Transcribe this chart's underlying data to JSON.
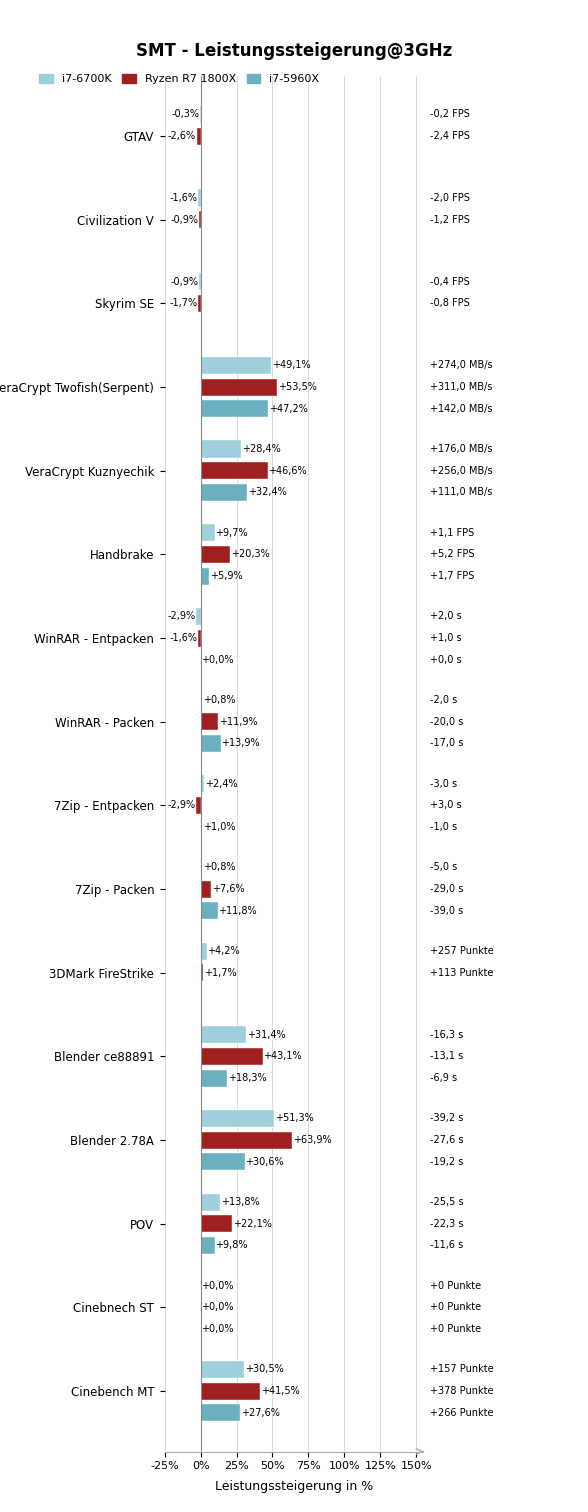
{
  "title": "SMT - Leistungssteigerung@3GHz",
  "xlabel": "Leistungssteigerung in %",
  "legend_labels": [
    "i7-6700K",
    "Ryzen R7 1800X",
    "i7-5960X"
  ],
  "colors": {
    "i7_6700K": "#9ECFDA",
    "ryzen": "#A02020",
    "i7_5960X": "#6BB0C0"
  },
  "bar_height": 0.22,
  "groups": [
    {
      "label": "GTAV",
      "values": [
        -0.3,
        -2.6,
        null
      ],
      "pct_labels": [
        "-0,3%",
        "-2,6%",
        null
      ],
      "abs_labels": [
        "-0,2 FPS",
        "-2,4 FPS",
        null
      ]
    },
    {
      "label": "Civilization V",
      "values": [
        -1.6,
        -0.9,
        null
      ],
      "pct_labels": [
        "-1,6%",
        "-0,9%",
        null
      ],
      "abs_labels": [
        "-2,0 FPS",
        "-1,2 FPS",
        null
      ]
    },
    {
      "label": "Skyrim SE",
      "values": [
        -0.9,
        -1.7,
        null
      ],
      "pct_labels": [
        "-0,9%",
        "-1,7%",
        null
      ],
      "abs_labels": [
        "-0,4 FPS",
        "-0,8 FPS",
        null
      ]
    },
    {
      "label": "VeraCrypt Twofish(Serpent)",
      "values": [
        49.1,
        53.5,
        47.2
      ],
      "pct_labels": [
        "+49,1%",
        "+53,5%",
        "+47,2%"
      ],
      "abs_labels": [
        "+274,0 MB/s",
        "+311,0 MB/s",
        "+142,0 MB/s"
      ]
    },
    {
      "label": "VeraCrypt Kuznyechik",
      "values": [
        28.4,
        46.6,
        32.4
      ],
      "pct_labels": [
        "+28,4%",
        "+46,6%",
        "+32,4%"
      ],
      "abs_labels": [
        "+176,0 MB/s",
        "+256,0 MB/s",
        "+111,0 MB/s"
      ]
    },
    {
      "label": "Handbrake",
      "values": [
        9.7,
        20.3,
        5.9
      ],
      "pct_labels": [
        "+9,7%",
        "+20,3%",
        "+5,9%"
      ],
      "abs_labels": [
        "+1,1 FPS",
        "+5,2 FPS",
        "+1,7 FPS"
      ]
    },
    {
      "label": "WinRAR - Entpacken",
      "values": [
        -2.9,
        -1.6,
        0.0
      ],
      "pct_labels": [
        "-2,9%",
        "-1,6%",
        "+0,0%"
      ],
      "abs_labels": [
        "+2,0 s",
        "+1,0 s",
        "+0,0 s"
      ]
    },
    {
      "label": "WinRAR - Packen",
      "values": [
        0.8,
        11.9,
        13.9
      ],
      "pct_labels": [
        "+0,8%",
        "+11,9%",
        "+13,9%"
      ],
      "abs_labels": [
        "-2,0 s",
        "-20,0 s",
        "-17,0 s"
      ]
    },
    {
      "label": "7Zip - Entpacken",
      "values": [
        2.4,
        -2.9,
        1.0
      ],
      "pct_labels": [
        "+2,4%",
        "-2,9%",
        "+1,0%"
      ],
      "abs_labels": [
        "-3,0 s",
        "+3,0 s",
        "-1,0 s"
      ]
    },
    {
      "label": "7Zip - Packen",
      "values": [
        0.8,
        7.6,
        11.8
      ],
      "pct_labels": [
        "+0,8%",
        "+7,6%",
        "+11,8%"
      ],
      "abs_labels": [
        "-5,0 s",
        "-29,0 s",
        "-39,0 s"
      ]
    },
    {
      "label": "3DMark FireStrike",
      "values": [
        4.2,
        1.7,
        null
      ],
      "pct_labels": [
        "+4,2%",
        "+1,7%",
        null
      ],
      "abs_labels": [
        "+257 Punkte",
        "+113 Punkte",
        null
      ]
    },
    {
      "label": "Blender ce88891",
      "values": [
        31.4,
        43.1,
        18.3
      ],
      "pct_labels": [
        "+31,4%",
        "+43,1%",
        "+18,3%"
      ],
      "abs_labels": [
        "-16,3 s",
        "-13,1 s",
        "-6,9 s"
      ]
    },
    {
      "label": "Blender 2.78A",
      "values": [
        51.3,
        63.9,
        30.6
      ],
      "pct_labels": [
        "+51,3%",
        "+63,9%",
        "+30,6%"
      ],
      "abs_labels": [
        "-39,2 s",
        "-27,6 s",
        "-19,2 s"
      ]
    },
    {
      "label": "POV",
      "values": [
        13.8,
        22.1,
        9.8
      ],
      "pct_labels": [
        "+13,8%",
        "+22,1%",
        "+9,8%"
      ],
      "abs_labels": [
        "-25,5 s",
        "-22,3 s",
        "-11,6 s"
      ]
    },
    {
      "label": "Cinebnech ST",
      "values": [
        0.0,
        0.0,
        0.0
      ],
      "pct_labels": [
        "+0,0%",
        "+0,0%",
        "+0,0%"
      ],
      "abs_labels": [
        "+0 Punkte",
        "+0 Punkte",
        "+0 Punkte"
      ]
    },
    {
      "label": "Cinebench MT",
      "values": [
        30.5,
        41.5,
        27.6
      ],
      "pct_labels": [
        "+30,5%",
        "+41,5%",
        "+27,6%"
      ],
      "abs_labels": [
        "+157 Punkte",
        "+378 Punkte",
        "+266 Punkte"
      ]
    }
  ],
  "xlim": [
    -25,
    155
  ],
  "xticks": [
    -25,
    0,
    25,
    50,
    75,
    100,
    125,
    150
  ],
  "xtick_labels": [
    "-25%",
    "0%",
    "25%",
    "50%",
    "75%",
    "100%",
    "125%",
    "150%"
  ]
}
